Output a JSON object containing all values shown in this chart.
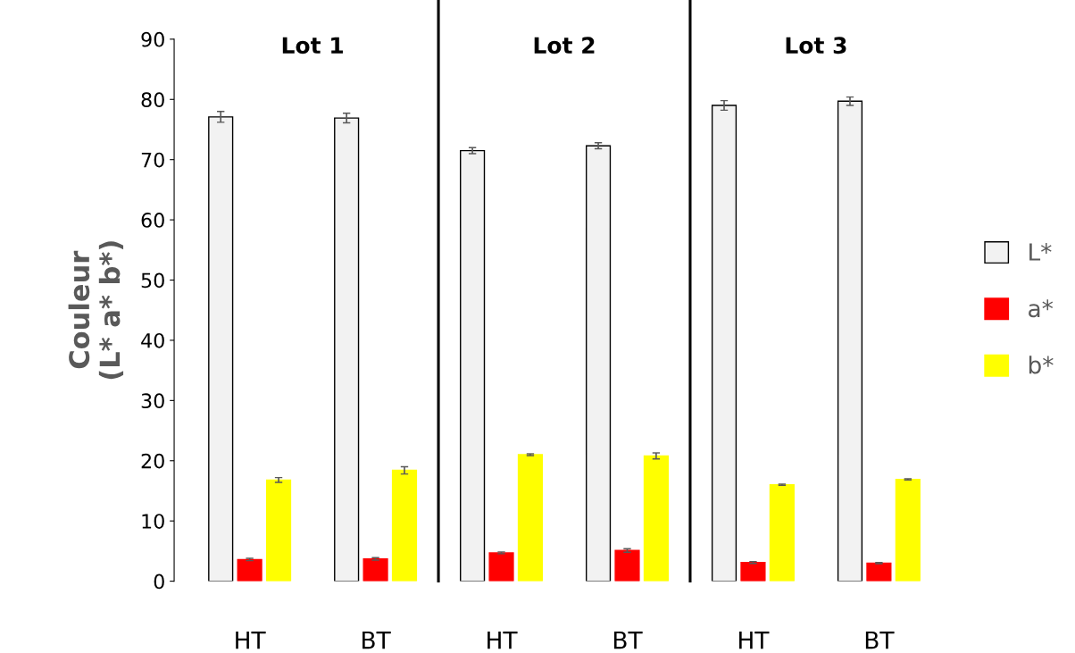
{
  "chart_data": {
    "type": "bar",
    "ylabel": "Couleur\n(L* a* b*)",
    "categories": [
      "HT",
      "BT",
      "HT",
      "BT",
      "HT",
      "BT"
    ],
    "series": [
      {
        "name": "L*",
        "color": "#f2f2f2",
        "values": [
          77.1,
          76.9,
          71.5,
          72.3,
          79.0,
          79.7
        ],
        "errors": [
          0.9,
          0.8,
          0.5,
          0.5,
          0.8,
          0.7
        ]
      },
      {
        "name": "a*",
        "color": "#ff0000",
        "values": [
          3.6,
          3.7,
          4.7,
          5.1,
          3.1,
          3.0
        ],
        "errors": [
          0.2,
          0.2,
          0.15,
          0.3,
          0.15,
          0.1
        ]
      },
      {
        "name": "b*",
        "color": "#ffff00",
        "values": [
          16.8,
          18.4,
          21.0,
          20.8,
          16.0,
          16.9
        ],
        "errors": [
          0.4,
          0.6,
          0.15,
          0.5,
          0.1,
          0.1
        ]
      }
    ],
    "ylim": [
      0,
      90
    ],
    "yticks": [
      0,
      10,
      20,
      30,
      40,
      50,
      60,
      70,
      80,
      90
    ],
    "annotations": [
      "Lot 1",
      "Lot 2",
      "Lot 3"
    ],
    "legend": "right",
    "grid": false
  }
}
